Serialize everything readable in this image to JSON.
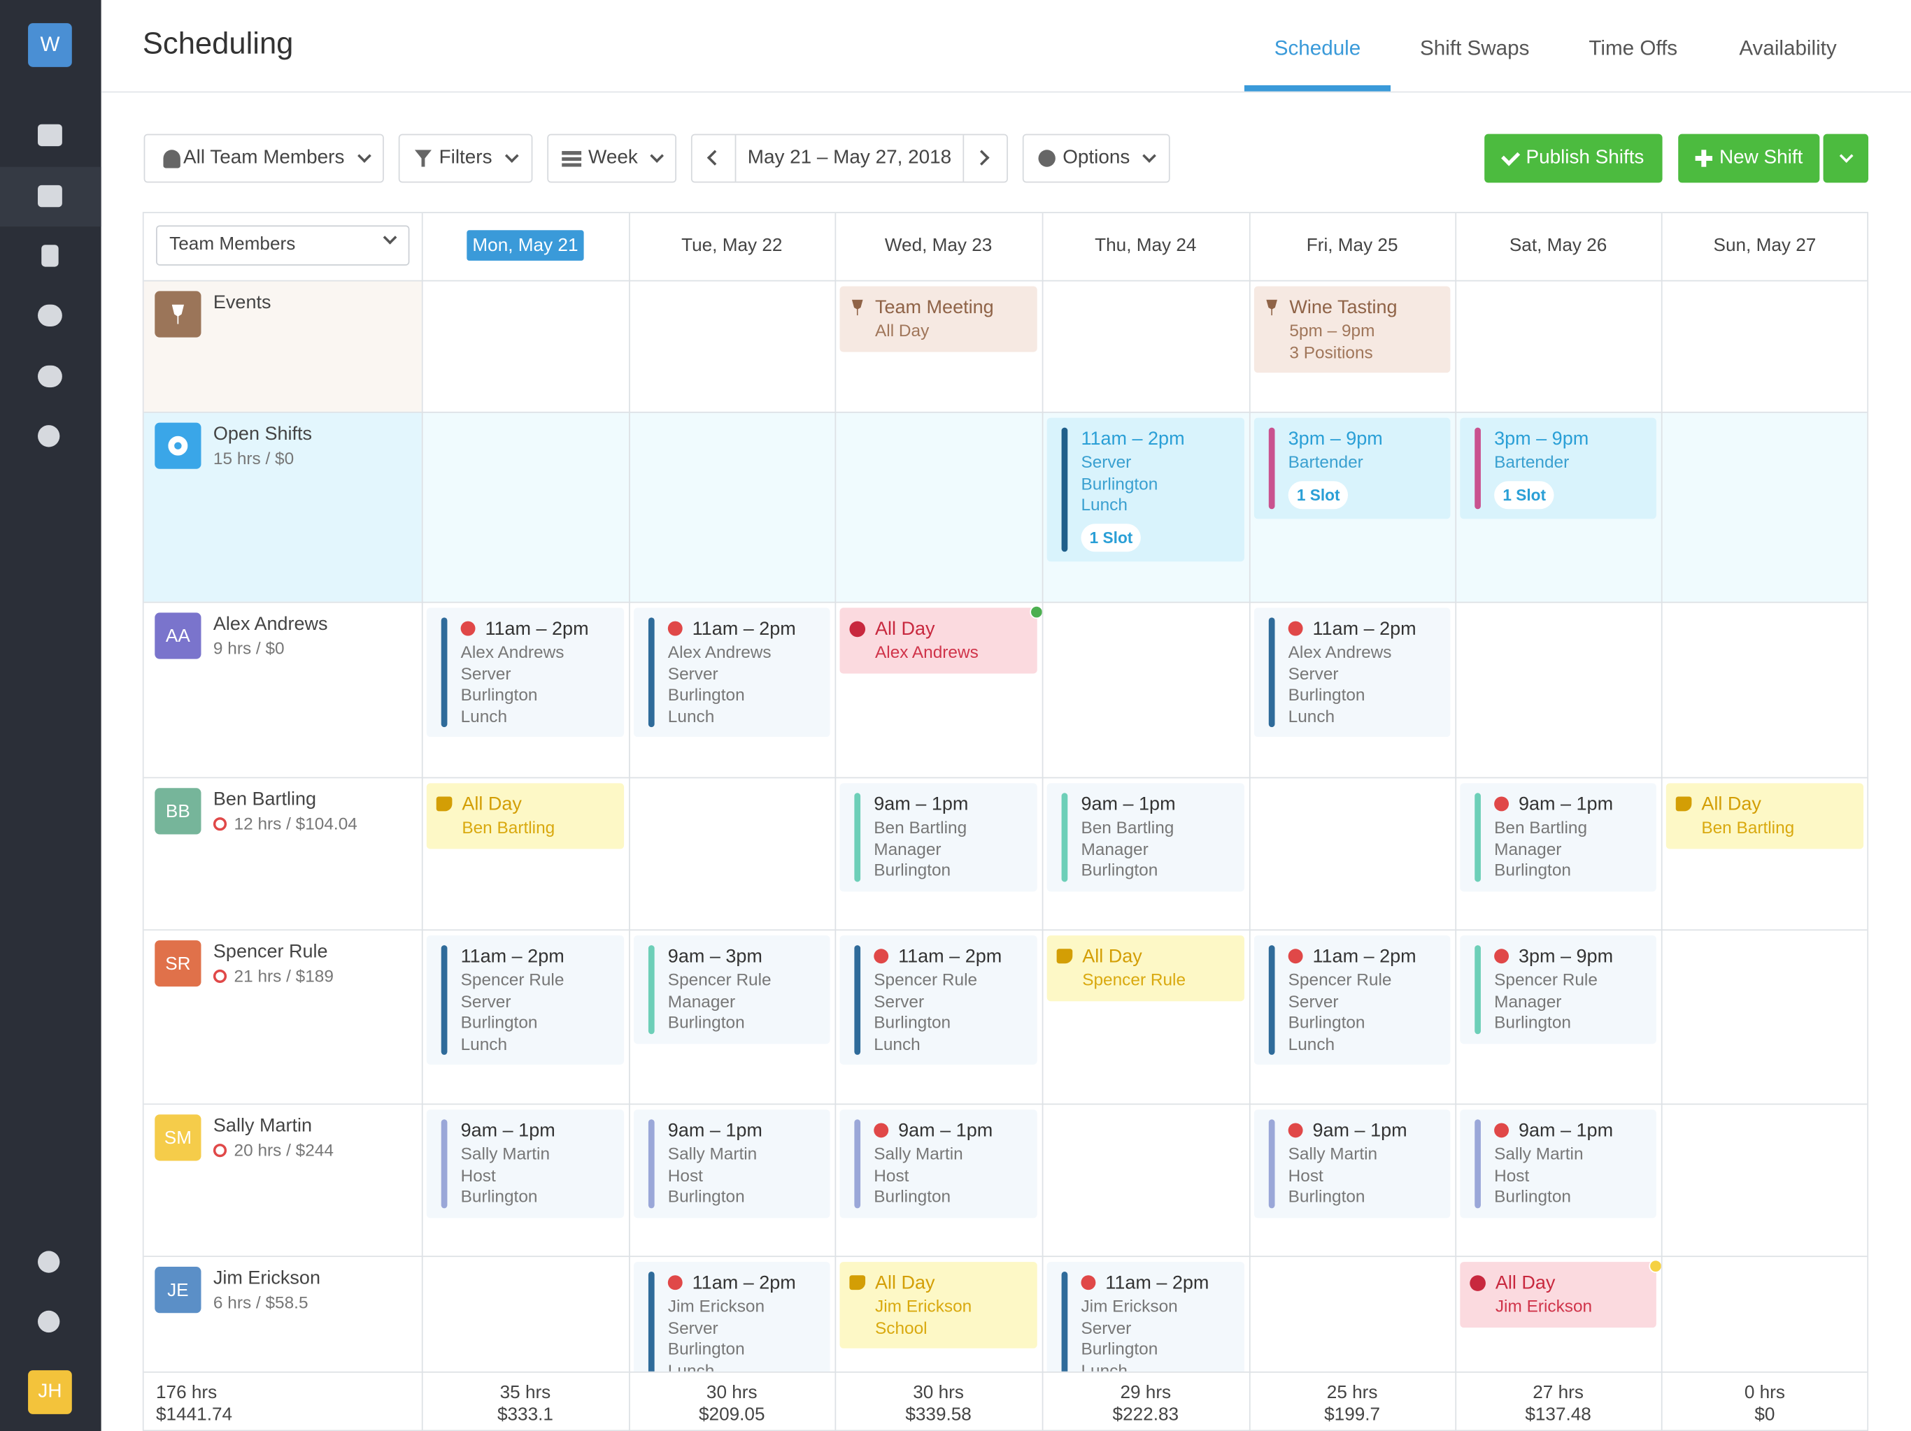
{
  "app_logo": "W",
  "user_initials": "JH",
  "title": "Scheduling",
  "tabs": [
    "Schedule",
    "Shift Swaps",
    "Time Offs",
    "Availability"
  ],
  "active_tab": 0,
  "toolbar": {
    "team_filter": "All Team Members",
    "filters": "Filters",
    "view": "Week",
    "date_range": "May 21 – May 27, 2018",
    "options": "Options",
    "publish": "Publish Shifts",
    "new_shift": "New Shift"
  },
  "grid": {
    "first_column_header": "Team Members",
    "today": 0,
    "days": [
      "Mon, May 21",
      "Tue, May 22",
      "Wed, May 23",
      "Thu, May 24",
      "Fri, May 25",
      "Sat, May 26",
      "Sun, May 27"
    ],
    "rows": [
      {
        "name": "Events",
        "avatar_color": "#9b7559",
        "kind": "events",
        "cells": [
          null,
          null,
          {
            "kind": "event",
            "time": "Team Meeting",
            "lines": [
              "All Day"
            ]
          },
          null,
          {
            "kind": "event",
            "time": "Wine Tasting",
            "lines": [
              "5pm – 9pm",
              "3 Positions"
            ]
          },
          null,
          null
        ]
      },
      {
        "name": "Open Shifts",
        "subtitle": "15 hrs / $0",
        "avatar_color": "#3aa6e8",
        "kind": "open",
        "cells": [
          null,
          null,
          null,
          {
            "kind": "open",
            "time": "11am – 2pm",
            "lines": [
              "Server",
              "Burlington",
              "Lunch"
            ],
            "slots": "1 Slot",
            "color": "#1f5f8b"
          },
          {
            "kind": "open",
            "time": "3pm – 9pm",
            "lines": [
              "Bartender"
            ],
            "slots": "1 Slot",
            "color": "#c9528f"
          },
          {
            "kind": "open",
            "time": "3pm – 9pm",
            "lines": [
              "Bartender"
            ],
            "slots": "1 Slot",
            "color": "#c9528f"
          },
          null
        ]
      },
      {
        "name": "Alex Andrews",
        "initials": "AA",
        "subtitle": "9 hrs / $0",
        "avatar_color": "#7a74cc",
        "cells": [
          {
            "kind": "shift",
            "alert": true,
            "time": "11am – 2pm",
            "lines": [
              "Alex Andrews",
              "Server",
              "Burlington",
              "Lunch"
            ],
            "color": "#2f6b9a"
          },
          {
            "kind": "shift",
            "alert": true,
            "time": "11am – 2pm",
            "lines": [
              "Alex Andrews",
              "Server",
              "Burlington",
              "Lunch"
            ],
            "color": "#2f6b9a"
          },
          {
            "kind": "timeoff",
            "time": "All Day",
            "lines": [
              "Alex Andrews"
            ],
            "dot": "#4caf50"
          },
          null,
          {
            "kind": "shift",
            "alert": true,
            "time": "11am – 2pm",
            "lines": [
              "Alex Andrews",
              "Server",
              "Burlington",
              "Lunch"
            ],
            "color": "#2f6b9a"
          },
          null,
          null
        ]
      },
      {
        "name": "Ben Bartling",
        "initials": "BB",
        "subtitle": "12 hrs / $104.04",
        "warning": true,
        "avatar_color": "#76b59a",
        "cells": [
          {
            "kind": "unavailable",
            "time": "All Day",
            "lines": [
              "Ben Bartling"
            ]
          },
          null,
          {
            "kind": "shift",
            "time": "9am – 1pm",
            "lines": [
              "Ben Bartling",
              "Manager",
              "Burlington"
            ],
            "color": "#6dcfb8"
          },
          {
            "kind": "shift",
            "time": "9am – 1pm",
            "lines": [
              "Ben Bartling",
              "Manager",
              "Burlington"
            ],
            "color": "#6dcfb8"
          },
          null,
          {
            "kind": "shift",
            "alert": true,
            "time": "9am – 1pm",
            "lines": [
              "Ben Bartling",
              "Manager",
              "Burlington"
            ],
            "color": "#6dcfb8"
          },
          {
            "kind": "unavailable",
            "time": "All Day",
            "lines": [
              "Ben Bartling"
            ]
          }
        ]
      },
      {
        "name": "Spencer Rule",
        "initials": "SR",
        "subtitle": "21 hrs / $189",
        "warning": true,
        "avatar_color": "#e0714a",
        "cells": [
          {
            "kind": "shift",
            "time": "11am – 2pm",
            "lines": [
              "Spencer Rule",
              "Server",
              "Burlington",
              "Lunch"
            ],
            "color": "#2f6b9a"
          },
          {
            "kind": "shift",
            "time": "9am – 3pm",
            "lines": [
              "Spencer Rule",
              "Manager",
              "Burlington"
            ],
            "color": "#6dcfb8"
          },
          {
            "kind": "shift",
            "alert": true,
            "time": "11am – 2pm",
            "lines": [
              "Spencer Rule",
              "Server",
              "Burlington",
              "Lunch"
            ],
            "color": "#2f6b9a"
          },
          {
            "kind": "unavailable",
            "time": "All Day",
            "lines": [
              "Spencer Rule"
            ]
          },
          {
            "kind": "shift",
            "alert": true,
            "time": "11am – 2pm",
            "lines": [
              "Spencer Rule",
              "Server",
              "Burlington",
              "Lunch"
            ],
            "color": "#2f6b9a"
          },
          {
            "kind": "shift",
            "alert": true,
            "time": "3pm – 9pm",
            "lines": [
              "Spencer Rule",
              "Manager",
              "Burlington"
            ],
            "color": "#6dcfb8"
          },
          null
        ]
      },
      {
        "name": "Sally Martin",
        "initials": "SM",
        "subtitle": "20 hrs / $244",
        "warning": true,
        "avatar_color": "#f5cc4a",
        "cells": [
          {
            "kind": "shift",
            "time": "9am – 1pm",
            "lines": [
              "Sally Martin",
              "Host",
              "Burlington"
            ],
            "color": "#9aa7d8"
          },
          {
            "kind": "shift",
            "time": "9am – 1pm",
            "lines": [
              "Sally Martin",
              "Host",
              "Burlington"
            ],
            "color": "#9aa7d8"
          },
          {
            "kind": "shift",
            "alert": true,
            "time": "9am – 1pm",
            "lines": [
              "Sally Martin",
              "Host",
              "Burlington"
            ],
            "color": "#9aa7d8"
          },
          null,
          {
            "kind": "shift",
            "alert": true,
            "time": "9am – 1pm",
            "lines": [
              "Sally Martin",
              "Host",
              "Burlington"
            ],
            "color": "#9aa7d8"
          },
          {
            "kind": "shift",
            "alert": true,
            "time": "9am – 1pm",
            "lines": [
              "Sally Martin",
              "Host",
              "Burlington"
            ],
            "color": "#9aa7d8"
          },
          null
        ]
      },
      {
        "name": "Jim Erickson",
        "initials": "JE",
        "subtitle": "6 hrs / $58.5",
        "avatar_color": "#5b8fc7",
        "cells": [
          null,
          {
            "kind": "shift",
            "alert": true,
            "time": "11am – 2pm",
            "lines": [
              "Jim Erickson",
              "Server",
              "Burlington",
              "Lunch"
            ],
            "color": "#2f6b9a"
          },
          {
            "kind": "unavailable",
            "time": "All Day",
            "lines": [
              "Jim Erickson",
              "School"
            ]
          },
          {
            "kind": "shift",
            "alert": true,
            "time": "11am – 2pm",
            "lines": [
              "Jim Erickson",
              "Server",
              "Burlington",
              "Lunch"
            ],
            "color": "#2f6b9a"
          },
          null,
          {
            "kind": "timeoff",
            "time": "All Day",
            "lines": [
              "Jim Erickson"
            ],
            "dot": "#f5d142"
          },
          null
        ]
      }
    ],
    "totals": [
      {
        "hours": "176 hrs",
        "cost": "$1441.74"
      },
      {
        "hours": "35 hrs",
        "cost": "$333.1"
      },
      {
        "hours": "30 hrs",
        "cost": "$209.05"
      },
      {
        "hours": "30 hrs",
        "cost": "$339.58"
      },
      {
        "hours": "29 hrs",
        "cost": "$222.83"
      },
      {
        "hours": "25 hrs",
        "cost": "$199.7"
      },
      {
        "hours": "27 hrs",
        "cost": "$137.48"
      },
      {
        "hours": "0 hrs",
        "cost": "$0"
      }
    ]
  }
}
